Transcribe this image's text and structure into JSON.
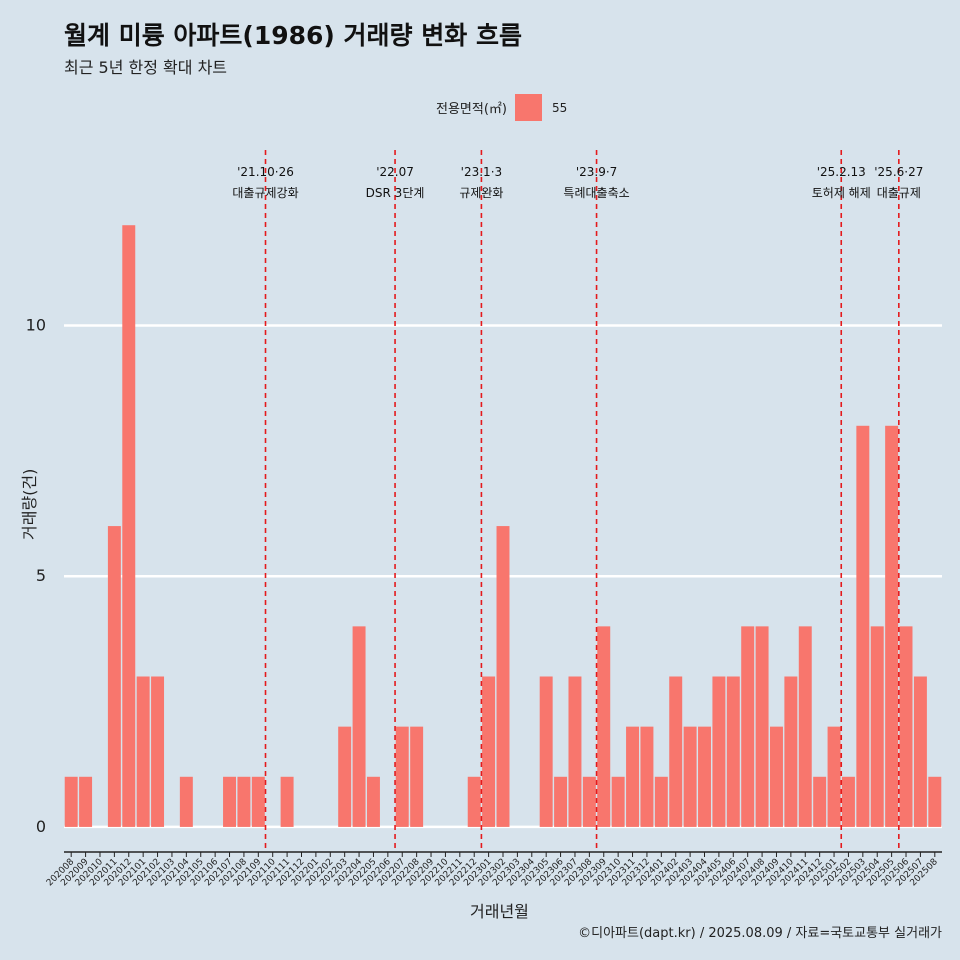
{
  "title": "월계 미륭 아파트(1986) 거래량 변화 흐름",
  "subtitle": "최근 5년 한정 확대 차트",
  "caption": "©디아파트(dapt.kr) / 2025.08.09 / 자료=국토교통부 실거래가",
  "colors": {
    "bar": "#f8766d",
    "event_line": "#e41a1c",
    "background": "#d7e3ec",
    "grid": "#ffffff"
  },
  "chart_data": {
    "type": "bar",
    "xlabel": "거래년월",
    "ylabel": "거래량(건)",
    "legend": {
      "title": "전용면적(㎡)",
      "entries": [
        "55"
      ],
      "position": "top"
    },
    "ylim": [
      -0.5,
      13.5
    ],
    "yticks": [
      0,
      5,
      10
    ],
    "grid": true,
    "categories": [
      "202008",
      "202009",
      "202010",
      "202011",
      "202012",
      "202101",
      "202102",
      "202103",
      "202104",
      "202105",
      "202106",
      "202107",
      "202108",
      "202109",
      "202110",
      "202111",
      "202112",
      "202201",
      "202202",
      "202203",
      "202204",
      "202205",
      "202206",
      "202207",
      "202208",
      "202209",
      "202210",
      "202211",
      "202212",
      "202301",
      "202302",
      "202303",
      "202304",
      "202305",
      "202306",
      "202307",
      "202308",
      "202309",
      "202310",
      "202311",
      "202312",
      "202401",
      "202402",
      "202403",
      "202404",
      "202405",
      "202406",
      "202407",
      "202408",
      "202409",
      "202410",
      "202411",
      "202412",
      "202501",
      "202502",
      "202503",
      "202504",
      "202505",
      "202506",
      "202507",
      "202508"
    ],
    "series": [
      {
        "name": "55",
        "values": [
          1,
          1,
          0,
          6,
          12,
          3,
          3,
          0,
          1,
          0,
          0,
          1,
          1,
          1,
          0,
          1,
          0,
          0,
          0,
          2,
          4,
          1,
          0,
          2,
          2,
          0,
          0,
          0,
          1,
          3,
          6,
          0,
          0,
          3,
          1,
          3,
          1,
          4,
          1,
          2,
          2,
          1,
          3,
          2,
          2,
          3,
          3,
          4,
          4,
          2,
          3,
          4,
          1,
          2,
          1,
          8,
          4,
          8,
          4,
          3,
          1
        ]
      }
    ],
    "events": [
      {
        "date": "'21.10·26",
        "label": "대출규제강화",
        "at": "202110"
      },
      {
        "date": "'22.07",
        "label": "DSR 3단계",
        "at": "202207"
      },
      {
        "date": "'23.1·3",
        "label": "규제완화",
        "at": "202301"
      },
      {
        "date": "'23.9·7",
        "label": "특례대출축소",
        "at": "202309"
      },
      {
        "date": "'25.2.13",
        "label": "토허제 해제",
        "at": "202502"
      },
      {
        "date": "'25.6·27",
        "label": "대출규제",
        "at": "202506"
      }
    ]
  }
}
